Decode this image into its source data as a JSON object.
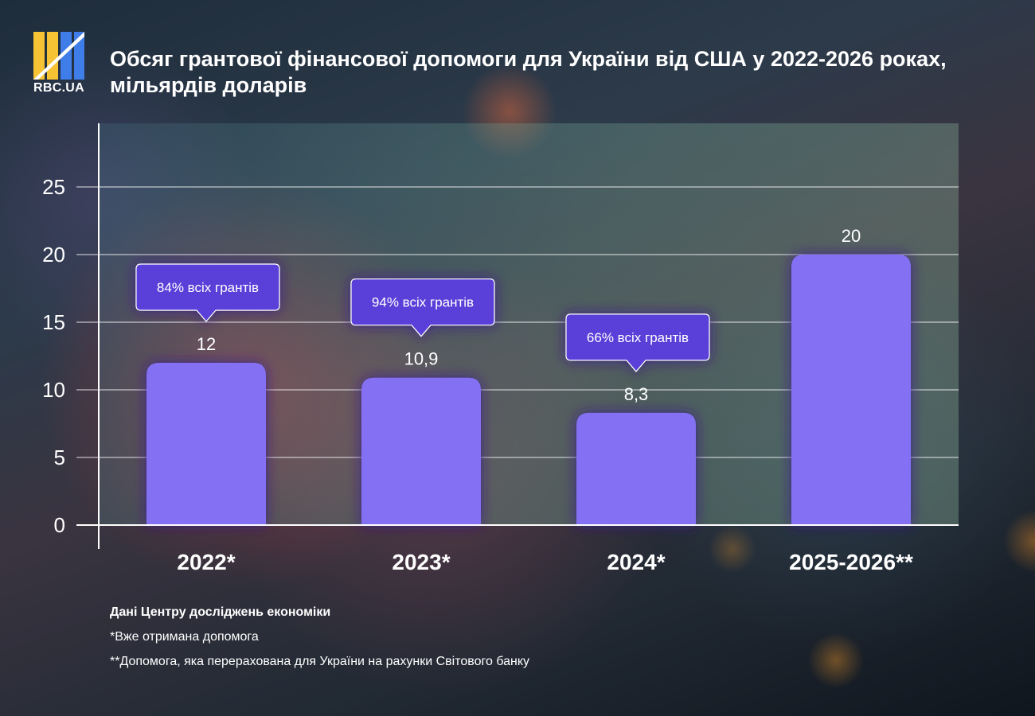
{
  "brand": {
    "name": "RBC.UA",
    "colors": {
      "yellow": "#f5c334",
      "blue": "#3f7de8"
    }
  },
  "chart_data": {
    "type": "bar",
    "title": "Обсяг грантової фінансової допомоги для України від США у 2022-2026 роках, мільярдів доларів",
    "categories": [
      "2022*",
      "2023*",
      "2024*",
      "2025-2026**"
    ],
    "values": [
      12,
      10.9,
      8.3,
      20
    ],
    "value_labels": [
      "12",
      "10,9",
      "8,3",
      "20"
    ],
    "callouts": [
      "84% всіх грантів",
      "94% всіх грантів",
      "66% всіх грантів",
      null
    ],
    "ylim": [
      0,
      30
    ],
    "yticks": [
      0,
      5,
      10,
      15,
      20,
      25
    ],
    "xlabel": "",
    "ylabel": "",
    "grid": true,
    "bar_color": "#8470f2",
    "callout_color": "#5a40d8"
  },
  "notes": [
    "Дані Центру досліджень економіки",
    "*Вже отримана допомога",
    "**Допомога, яка перерахована для України на рахунки Світового банку"
  ]
}
